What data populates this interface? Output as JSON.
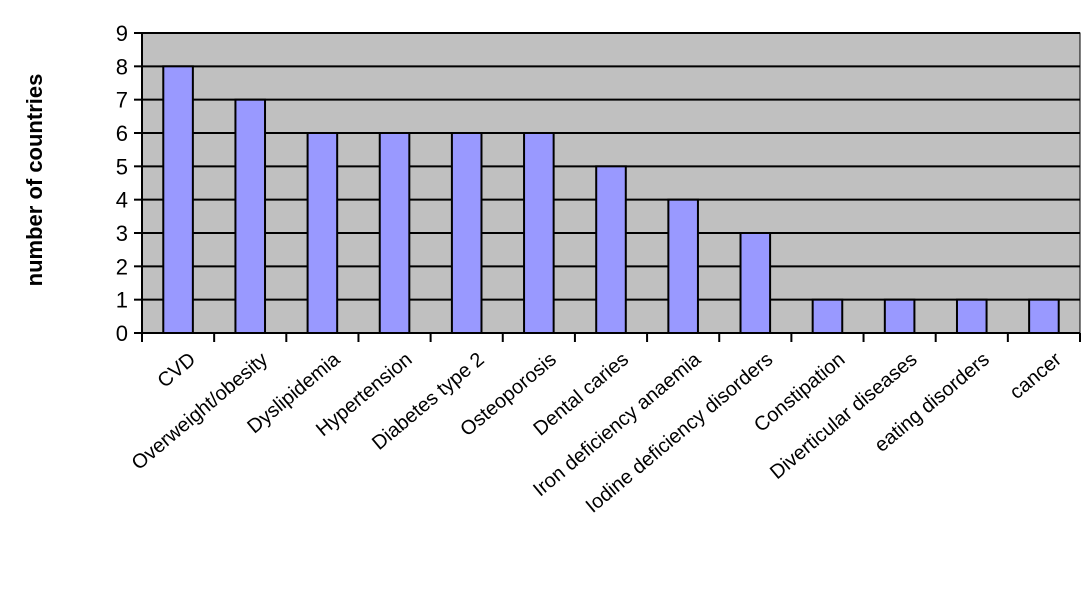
{
  "chart_data": {
    "type": "bar",
    "title": "",
    "xlabel": "",
    "ylabel": "number of countries",
    "ylim": [
      0,
      9
    ],
    "yticks": [
      0,
      1,
      2,
      3,
      4,
      5,
      6,
      7,
      8,
      9
    ],
    "grid": true,
    "legend": "none",
    "categories": [
      "CVD",
      "Overweight/obesity",
      "Dyslipidemia",
      "Hypertension",
      "Diabetes type 2",
      "Osteoporosis",
      "Dental caries",
      "Iron deficiency anaemia",
      "Iodine deficiency disorders",
      "Constipation",
      "Diverticular diseases",
      "eating disorders",
      "cancer"
    ],
    "values": [
      8,
      7,
      6,
      6,
      6,
      6,
      5,
      4,
      3,
      1,
      1,
      1,
      1
    ],
    "colors": {
      "bar": "#9999ff",
      "plot_background": "#c0c0c0",
      "gridline": "#000000"
    }
  }
}
